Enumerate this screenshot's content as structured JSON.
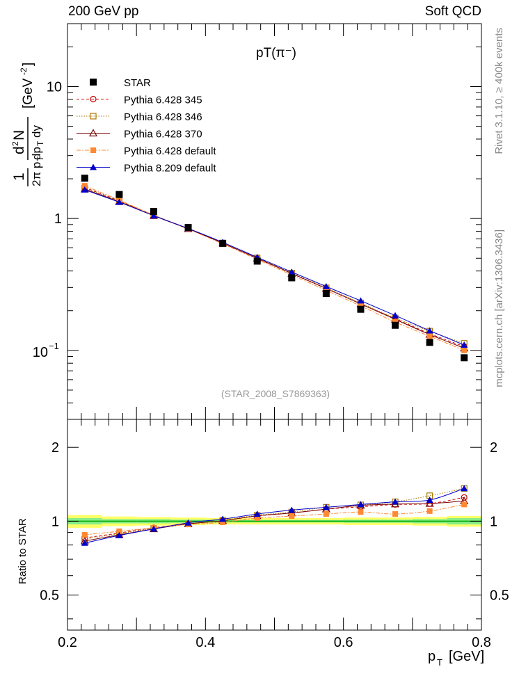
{
  "header": {
    "left": "200 GeV pp",
    "right": "Soft QCD"
  },
  "side": {
    "top": "Rivet 3.1.10, ≥ 400k events",
    "bottom": "mcplots.cern.ch [arXiv:1306.3436]"
  },
  "chart_data": [
    {
      "type": "line",
      "title": "pT(π⁻)",
      "watermark": "(STAR_2008_S7869363)",
      "ylabel": "1/(2π pT) d²N/(dpT dy) [GeV⁻²]",
      "yscale": "log",
      "xlim": [
        0.2,
        0.8
      ],
      "ylim": [
        0.03,
        30
      ],
      "x_ticks": [
        {
          "v": 0.2,
          "label": "0.2"
        },
        {
          "v": 0.4,
          "label": "0.4"
        },
        {
          "v": 0.6,
          "label": "0.6"
        },
        {
          "v": 0.8,
          "label": "0.8"
        }
      ],
      "y_tick_labels": {
        "ten_minus_one_base": "10",
        "ten_minus_one_exp": "−1",
        "one": "1",
        "ten": "10"
      },
      "x": [
        0.225,
        0.275,
        0.325,
        0.375,
        0.425,
        0.475,
        0.525,
        0.575,
        0.625,
        0.675,
        0.725,
        0.775
      ],
      "legend": {
        "placement": "top-left"
      },
      "data_series": {
        "name": "STAR",
        "color": "#000000",
        "marker": "square",
        "values": [
          2.02,
          1.52,
          1.13,
          0.855,
          0.648,
          0.475,
          0.355,
          0.27,
          0.205,
          0.155,
          0.115,
          0.088
        ]
      },
      "series": [
        {
          "name": "Pythia 6.428 345",
          "color": "#cc0000",
          "marker": "circle-open",
          "dash": "4 3",
          "values": [
            1.72,
            1.36,
            1.06,
            0.835,
            0.65,
            0.498,
            0.382,
            0.294,
            0.225,
            0.174,
            0.134,
            0.107
          ]
        },
        {
          "name": "Pythia 6.428 346",
          "color": "#aa7700",
          "marker": "square-open",
          "dash": "1.5 2",
          "values": [
            1.7,
            1.35,
            1.06,
            0.835,
            0.652,
            0.502,
            0.386,
            0.298,
            0.229,
            0.176,
            0.14,
            0.113
          ]
        },
        {
          "name": "Pythia 6.428 370",
          "color": "#7a0000",
          "marker": "triangle-open",
          "dash": "",
          "values": [
            1.67,
            1.34,
            1.05,
            0.833,
            0.65,
            0.5,
            0.383,
            0.295,
            0.225,
            0.172,
            0.132,
            0.104
          ]
        },
        {
          "name": "Pythia 6.428 default",
          "color": "#ff8833",
          "marker": "square-filled",
          "dash": "6 2 2 2",
          "values": [
            1.77,
            1.38,
            1.06,
            0.83,
            0.642,
            0.49,
            0.373,
            0.285,
            0.217,
            0.164,
            0.128,
            0.1
          ]
        },
        {
          "name": "Pythia 8.209 default",
          "color": "#0000cc",
          "marker": "triangle-filled",
          "dash": "",
          "values": [
            1.65,
            1.33,
            1.05,
            0.84,
            0.66,
            0.508,
            0.393,
            0.305,
            0.238,
            0.184,
            0.141,
            0.11
          ]
        }
      ]
    },
    {
      "type": "line",
      "title": "",
      "ylabel": "Ratio to STAR",
      "xlabel": "pT [GeV]",
      "yscale": "log",
      "xlim": [
        0.2,
        0.8
      ],
      "ylim": [
        0.36,
        2.6
      ],
      "y_ticks": [
        {
          "v": 0.5,
          "label": "0.5"
        },
        {
          "v": 1,
          "label": "1"
        },
        {
          "v": 2,
          "label": "2"
        }
      ],
      "x": [
        0.225,
        0.275,
        0.325,
        0.375,
        0.425,
        0.475,
        0.525,
        0.575,
        0.625,
        0.675,
        0.725,
        0.775
      ],
      "band": {
        "bins": [
          0.2,
          0.25,
          0.3,
          0.35,
          0.4,
          0.45,
          0.5,
          0.55,
          0.6,
          0.65,
          0.7,
          0.75,
          0.8
        ],
        "total_err": [
          0.06,
          0.045,
          0.04,
          0.035,
          0.03,
          0.03,
          0.03,
          0.03,
          0.035,
          0.035,
          0.04,
          0.05
        ],
        "stat_err": [
          0.03,
          0.02,
          0.02,
          0.015,
          0.012,
          0.012,
          0.012,
          0.012,
          0.015,
          0.015,
          0.02,
          0.03
        ]
      },
      "series": [
        {
          "name": "Pythia 6.428 345",
          "color": "#cc0000",
          "marker": "circle-open",
          "dash": "4 3",
          "values": [
            0.855,
            0.895,
            0.94,
            0.975,
            1.005,
            1.05,
            1.08,
            1.12,
            1.145,
            1.17,
            1.18,
            1.25
          ]
        },
        {
          "name": "Pythia 6.428 346",
          "color": "#aa7700",
          "marker": "square-open",
          "dash": "1.5 2",
          "values": [
            0.845,
            0.89,
            0.935,
            0.975,
            1.008,
            1.058,
            1.09,
            1.14,
            1.165,
            1.2,
            1.27,
            1.36
          ]
        },
        {
          "name": "Pythia 6.428 370",
          "color": "#7a0000",
          "marker": "triangle-open",
          "dash": "",
          "values": [
            0.83,
            0.88,
            0.93,
            0.975,
            1.005,
            1.052,
            1.08,
            1.12,
            1.16,
            1.175,
            1.18,
            1.21
          ]
        },
        {
          "name": "Pythia 6.428 default",
          "color": "#ff8833",
          "marker": "square-filled",
          "dash": "6 2 2 2",
          "values": [
            0.88,
            0.91,
            0.94,
            0.97,
            0.99,
            1.03,
            1.05,
            1.07,
            1.09,
            1.07,
            1.1,
            1.17
          ]
        },
        {
          "name": "Pythia 8.209 default",
          "color": "#0000cc",
          "marker": "triangle-filled",
          "dash": "",
          "values": [
            0.815,
            0.875,
            0.93,
            0.985,
            1.02,
            1.07,
            1.11,
            1.14,
            1.17,
            1.2,
            1.22,
            1.36
          ]
        }
      ]
    }
  ]
}
